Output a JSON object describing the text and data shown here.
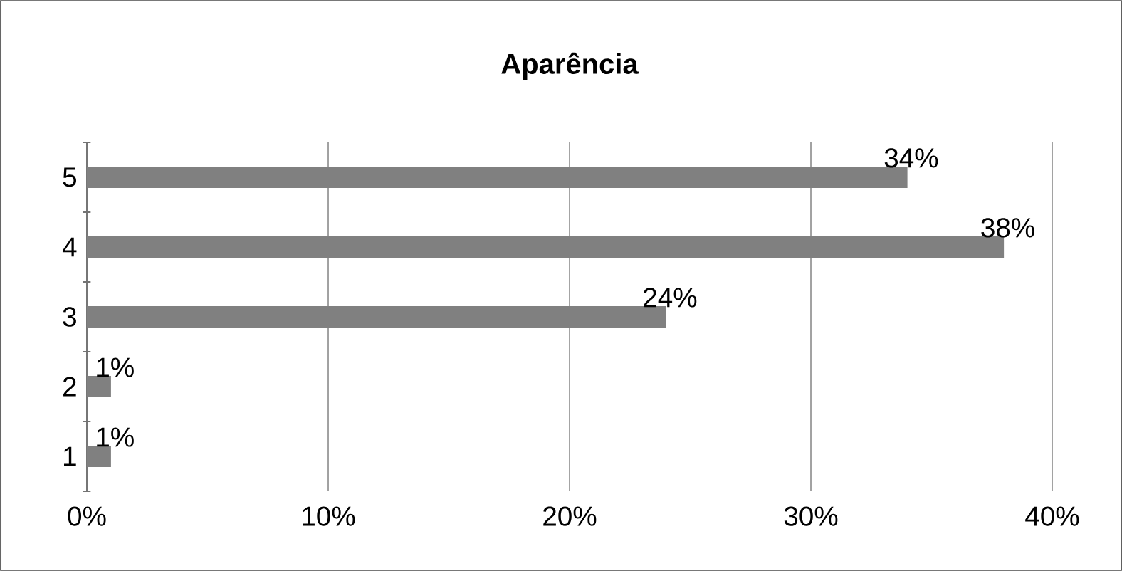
{
  "chart_data": {
    "type": "bar",
    "orientation": "horizontal",
    "title": "Aparência",
    "categories": [
      "5",
      "4",
      "3",
      "2",
      "1"
    ],
    "values": [
      34,
      38,
      24,
      1,
      1
    ],
    "value_labels": [
      "34%",
      "38%",
      "24%",
      "1%",
      "1%"
    ],
    "color": "#808080",
    "xlim": [
      0,
      40
    ],
    "xticks": [
      {
        "value": 0,
        "label": "0%"
      },
      {
        "value": 10,
        "label": "10%"
      },
      {
        "value": 20,
        "label": "20%"
      },
      {
        "value": 30,
        "label": "30%"
      },
      {
        "value": 40,
        "label": "40%"
      }
    ],
    "grid": "x"
  }
}
